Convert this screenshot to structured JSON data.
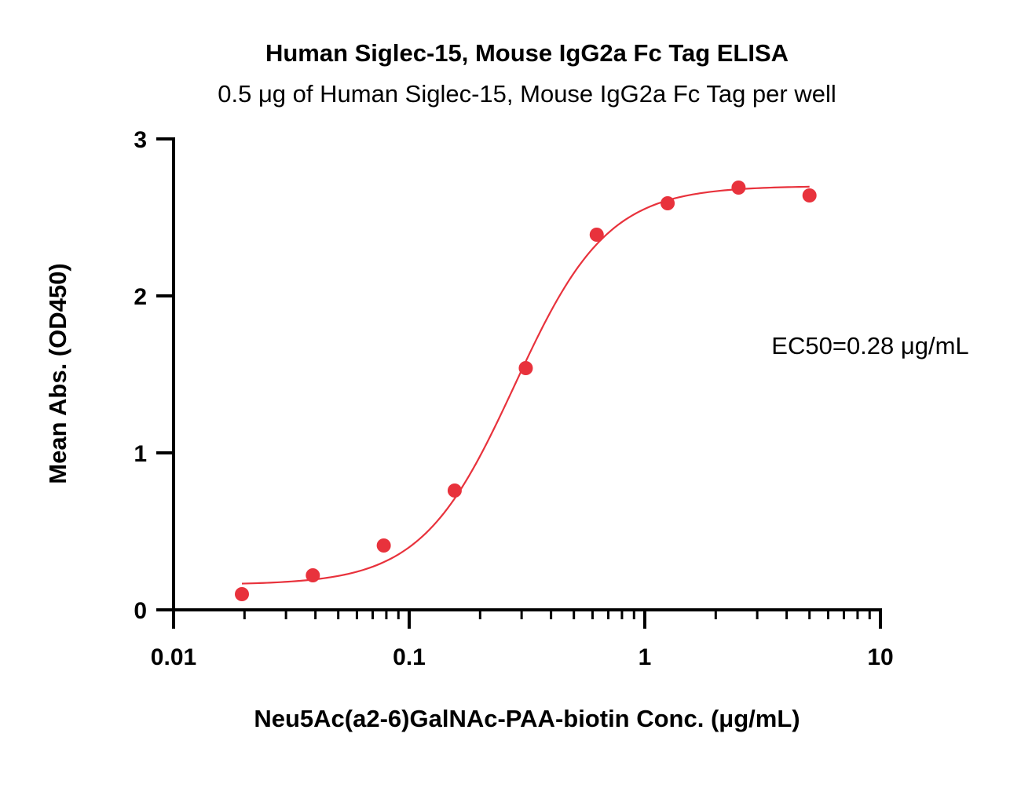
{
  "chart_data": {
    "type": "scatter",
    "title": "Human Siglec-15, Mouse IgG2a Fc Tag ELISA",
    "subtitle": "0.5 μg of Human Siglec-15, Mouse IgG2a Fc Tag per well",
    "xlabel": "Neu5Ac(a2-6)GalNAc-PAA-biotin Conc. (μg/mL)",
    "ylabel": "Mean Abs. (OD450)",
    "x_scale": "log",
    "xlim": [
      0.01,
      10
    ],
    "ylim": [
      0,
      3
    ],
    "x_ticks": [
      0.01,
      0.1,
      1,
      10
    ],
    "x_tick_labels": [
      "0.01",
      "0.1",
      "1",
      "10"
    ],
    "y_ticks": [
      0,
      1,
      2,
      3
    ],
    "y_tick_labels": [
      "0",
      "1",
      "2",
      "3"
    ],
    "grid": false,
    "legend": "none",
    "series": [
      {
        "points": [
          {
            "x": 0.0195,
            "y": 0.1
          },
          {
            "x": 0.039,
            "y": 0.22
          },
          {
            "x": 0.078,
            "y": 0.41
          },
          {
            "x": 0.156,
            "y": 0.76
          },
          {
            "x": 0.3125,
            "y": 1.54
          },
          {
            "x": 0.625,
            "y": 2.39
          },
          {
            "x": 1.25,
            "y": 2.59
          },
          {
            "x": 2.5,
            "y": 2.69
          },
          {
            "x": 5.0,
            "y": 2.64
          }
        ],
        "color": "#e8323c"
      }
    ],
    "fit": {
      "model": "4PL",
      "bottom": 0.16,
      "top": 2.7,
      "ec50": 0.28,
      "hill": 2.2,
      "x_range": [
        0.0195,
        5.0
      ],
      "color": "#e8323c"
    },
    "annotation": "EC50=0.28 μg/mL",
    "axis_color": "#000000"
  }
}
